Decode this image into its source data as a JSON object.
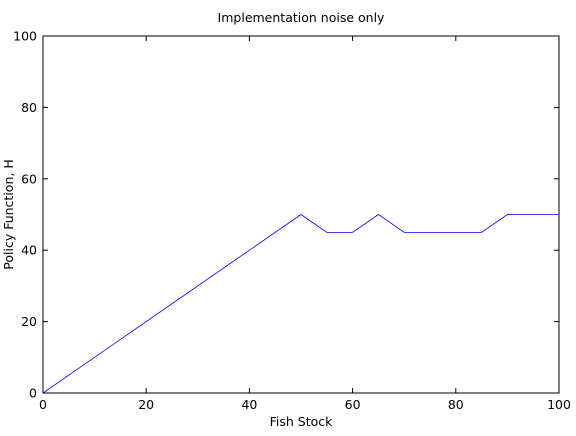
{
  "chart_data": {
    "type": "line",
    "title": "Implementation noise only",
    "xlabel": "Fish Stock",
    "ylabel": "Policy Function, H",
    "xlim": [
      0,
      100
    ],
    "ylim": [
      0,
      100
    ],
    "xticks": [
      "0",
      "20",
      "40",
      "60",
      "80",
      "100"
    ],
    "yticks": [
      "0",
      "20",
      "40",
      "60",
      "80",
      "100"
    ],
    "grid": false,
    "series": [
      {
        "color": "#0000ff",
        "x": [
          0,
          50,
          55,
          60,
          65,
          70,
          75,
          80,
          85,
          90,
          95,
          100
        ],
        "y": [
          0,
          50,
          45,
          45,
          50,
          45,
          45,
          45,
          45,
          50,
          50,
          50
        ]
      }
    ]
  }
}
